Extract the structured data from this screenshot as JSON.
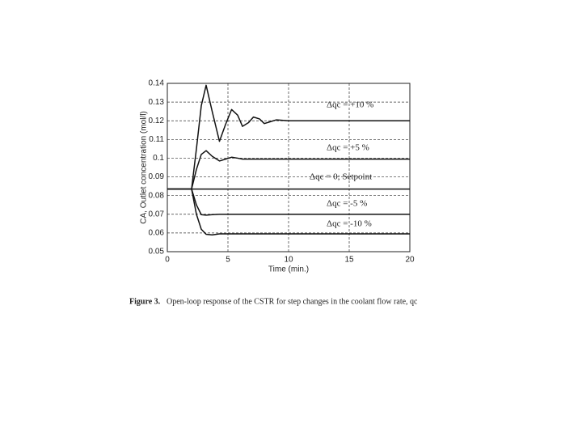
{
  "chart_data": {
    "type": "line",
    "y_label": "CA, Outlet concentration (mol/l)",
    "x_label": "Time (min.)",
    "caption_label": "Figure 3.",
    "caption_text": "Open-loop response of the CSTR for step changes in the coolant flow rate, qc",
    "annotations": [
      "Δqc = +10 %",
      "Δqc = +5 %",
      "Δqc = 0;  Setpoint",
      "Δqc = -5 %",
      "Δqc = -10 %"
    ],
    "x": [
      0,
      2,
      2.4,
      2.8,
      3.2,
      3.7,
      4.3,
      4.8,
      5.3,
      5.8,
      6.2,
      6.7,
      7.1,
      7.6,
      8,
      8.5,
      9,
      10,
      20
    ],
    "series": [
      {
        "color": "#111111",
        "values": [
          0.0835,
          0.0835,
          0.105,
          0.128,
          0.139,
          0.125,
          0.109,
          0.118,
          0.126,
          0.123,
          0.117,
          0.119,
          0.122,
          0.121,
          0.1185,
          0.1195,
          0.1205,
          0.12,
          0.12
        ]
      },
      {
        "color": "#111111",
        "values": [
          0.0835,
          0.0835,
          0.094,
          0.102,
          0.104,
          0.101,
          0.0985,
          0.0995,
          0.1005,
          0.1,
          0.0995,
          0.0995,
          0.0995,
          0.0995,
          0.0995,
          0.0995,
          0.0995,
          0.0995,
          0.0995
        ]
      },
      {
        "color": "#111111",
        "values": [
          0.0835,
          0.0835,
          0.0835,
          0.0835,
          0.0835,
          0.0835,
          0.0835,
          0.0835,
          0.0835,
          0.0835,
          0.0835,
          0.0835,
          0.0835,
          0.0835,
          0.0835,
          0.0835,
          0.0835,
          0.0835,
          0.0835
        ]
      },
      {
        "color": "#111111",
        "values": [
          0.0835,
          0.0835,
          0.075,
          0.0698,
          0.0695,
          0.0698,
          0.07,
          0.07,
          0.07,
          0.07,
          0.07,
          0.07,
          0.07,
          0.07,
          0.07,
          0.07,
          0.07,
          0.07,
          0.07
        ]
      },
      {
        "color": "#111111",
        "values": [
          0.0835,
          0.0835,
          0.07,
          0.062,
          0.0593,
          0.059,
          0.0595,
          0.0595,
          0.0595,
          0.0595,
          0.0595,
          0.0595,
          0.0595,
          0.0595,
          0.0595,
          0.0595,
          0.0595,
          0.0595,
          0.0595
        ]
      }
    ],
    "xlim": [
      0,
      20
    ],
    "xticks": [
      0,
      5,
      10,
      15,
      20
    ],
    "ylim": [
      0.05,
      0.14
    ],
    "yticks": [
      0.05,
      0.06,
      0.07,
      0.08,
      0.09,
      0.1,
      0.11,
      0.12,
      0.13,
      0.14
    ],
    "grid": true
  }
}
